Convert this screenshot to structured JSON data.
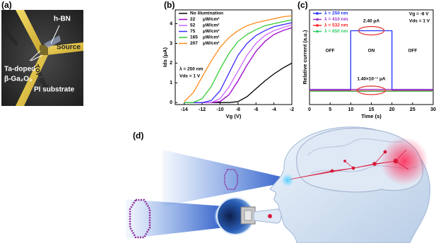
{
  "panel_labels": [
    "(a)",
    "(b)",
    "(c)",
    "(d)"
  ],
  "photo_labels": [
    "Drain",
    "h-BN",
    "Source",
    "Ta-doped",
    "β-Ga₂O₃",
    "Top gate",
    "PI substrate"
  ],
  "chart_data": [
    {
      "type": "line",
      "x_label": "Vg (V)",
      "y_label": "Ids (μA)",
      "x": [
        -14,
        -13,
        -12,
        -11,
        -10,
        -9,
        -8,
        -7,
        -6,
        -5,
        -4,
        -3,
        -2
      ],
      "xlim": [
        -15,
        -2
      ],
      "ylim": [
        -0.1,
        4.7
      ],
      "xticks": [
        -14,
        -12,
        -10,
        -8,
        -6,
        -4,
        -2
      ],
      "yticks": [
        0,
        1,
        2,
        3,
        4
      ],
      "legend_unit": "μW/cm²",
      "annotations": [
        "λ = 250 nm",
        "Vds = 1 V"
      ],
      "series": [
        {
          "name": "No illumination",
          "color": "#000000",
          "values": [
            0,
            0,
            0,
            0,
            0,
            0,
            0.05,
            0.3,
            0.7,
            1.1,
            1.45,
            1.75,
            2.0
          ]
        },
        {
          "name": "22",
          "color": "#9a00c8",
          "values": [
            0,
            0,
            0,
            0,
            0.05,
            0.4,
            1.1,
            1.9,
            2.6,
            3.1,
            3.45,
            3.65,
            3.8
          ]
        },
        {
          "name": "52",
          "color": "#cc66ff",
          "values": [
            0,
            0,
            0,
            0,
            0.2,
            0.8,
            1.6,
            2.4,
            3.0,
            3.4,
            3.65,
            3.8,
            3.95
          ]
        },
        {
          "name": "75",
          "color": "#3b2bff",
          "values": [
            0,
            0,
            0,
            0.1,
            0.6,
            1.5,
            2.4,
            3.0,
            3.4,
            3.65,
            3.85,
            3.95,
            4.05
          ]
        },
        {
          "name": "165",
          "color": "#33cc33",
          "values": [
            0,
            0,
            0.2,
            0.8,
            1.7,
            2.5,
            3.1,
            3.45,
            3.7,
            3.9,
            4.0,
            4.1,
            4.2
          ]
        },
        {
          "name": "207",
          "color": "#ff8a1a",
          "values": [
            0.05,
            0.5,
            1.3,
            2.1,
            2.8,
            3.3,
            3.65,
            3.9,
            4.05,
            4.15,
            4.25,
            4.35,
            4.4
          ]
        }
      ]
    },
    {
      "type": "line",
      "x_label": "Time (s)",
      "y_label": "Relative current (a.u.)",
      "x": [
        0,
        10,
        10,
        20,
        20,
        30
      ],
      "xlim": [
        0,
        30
      ],
      "ylim": [
        0,
        1
      ],
      "xticks": [
        0,
        5,
        10,
        15,
        20,
        25,
        30
      ],
      "annotations": [
        "OFF",
        "ON",
        "OFF",
        "2.40 μA",
        "1.40×10⁻⁷ μA",
        "Vg = -8 V",
        "Vds = 1 V"
      ],
      "series": [
        {
          "name": "λ = 250 nm",
          "color": "#2233ff",
          "values": [
            0.15,
            0.15,
            0.78,
            0.78,
            0.15,
            0.15
          ]
        },
        {
          "name": "λ = 410 nm",
          "color": "#9933cc",
          "values": [
            0.16,
            0.16,
            0.16,
            0.16,
            0.16,
            0.16
          ]
        },
        {
          "name": "λ = 532 nm",
          "color": "#ff2222",
          "values": [
            0.145,
            0.145,
            0.145,
            0.145,
            0.145,
            0.145
          ]
        },
        {
          "name": "λ = 650 nm",
          "color": "#33cc66",
          "values": [
            0.14,
            0.14,
            0.14,
            0.14,
            0.14,
            0.14
          ]
        }
      ]
    }
  ]
}
